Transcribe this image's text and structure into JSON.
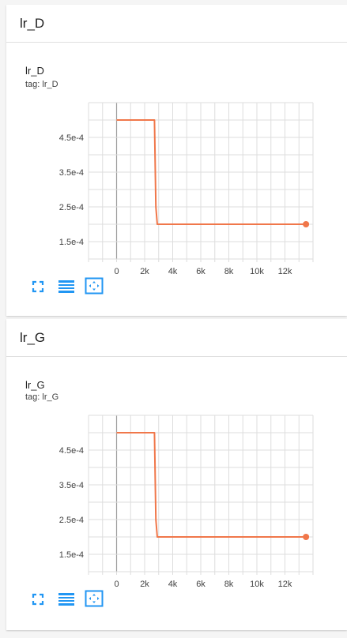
{
  "panels": [
    {
      "header_title": "lr_D",
      "card_title": "lr_D",
      "card_tag": "tag: lr_D",
      "chart_data": {
        "type": "line",
        "title": "lr_D",
        "xlabel": "",
        "ylabel": "",
        "x_ticks": [
          "0",
          "2k",
          "4k",
          "6k",
          "8k",
          "10k",
          "12k"
        ],
        "y_ticks": [
          "4.5e-4",
          "3.5e-4",
          "2.5e-4",
          "1.5e-4"
        ],
        "xlim": [
          -2000,
          14000
        ],
        "ylim": [
          0.0001,
          0.00055
        ],
        "series": [
          {
            "color": "#f0774a",
            "x": [
              0,
              2700,
              2800,
              2900,
              13500
            ],
            "y": [
              0.0005,
              0.0005,
              0.00025,
              0.0002,
              0.0002
            ]
          }
        ]
      }
    },
    {
      "header_title": "lr_G",
      "card_title": "lr_G",
      "card_tag": "tag: lr_G",
      "chart_data": {
        "type": "line",
        "title": "lr_G",
        "xlabel": "",
        "ylabel": "",
        "x_ticks": [
          "0",
          "2k",
          "4k",
          "6k",
          "8k",
          "10k",
          "12k"
        ],
        "y_ticks": [
          "4.5e-4",
          "3.5e-4",
          "2.5e-4",
          "1.5e-4"
        ],
        "xlim": [
          -2000,
          14000
        ],
        "ylim": [
          0.0001,
          0.00055
        ],
        "series": [
          {
            "color": "#f0774a",
            "x": [
              0,
              2700,
              2800,
              2900,
              13500
            ],
            "y": [
              0.0005,
              0.0005,
              0.00025,
              0.0002,
              0.0002
            ]
          }
        ]
      }
    }
  ],
  "toolbar": {
    "icons": [
      "fullscreen-icon",
      "toggle-y-axis-log-icon",
      "fit-domain-icon"
    ],
    "accent": "#2196f3"
  },
  "colors": {
    "grid": "#dddddd",
    "zero_line": "#9e9e9e",
    "axis_text": "#424242",
    "line": "#f0774a"
  }
}
